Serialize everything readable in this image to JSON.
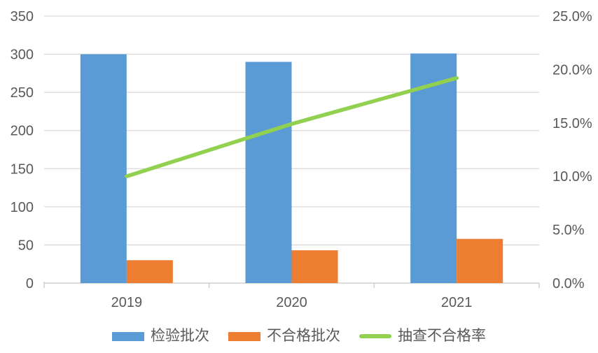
{
  "chart_data": {
    "type": "combo_bar_line",
    "title": "",
    "categories": [
      "2019",
      "2020",
      "2021"
    ],
    "series": [
      {
        "name": "检验批次",
        "type": "bar",
        "axis": "left",
        "color": "#5B9BD5",
        "values": [
          300,
          290,
          301
        ]
      },
      {
        "name": "不合格批次",
        "type": "bar",
        "axis": "left",
        "color": "#ED7D31",
        "values": [
          30,
          43,
          58
        ]
      },
      {
        "name": "抽查不合格率",
        "type": "line",
        "axis": "right",
        "color": "#92D050",
        "values_percent": [
          10.0,
          14.9,
          19.2
        ]
      }
    ],
    "left_axis": {
      "min": 0,
      "max": 350,
      "step": 50,
      "tick_labels": [
        "0",
        "50",
        "100",
        "150",
        "200",
        "250",
        "300",
        "350"
      ]
    },
    "right_axis": {
      "min": 0,
      "max": 25,
      "step": 5,
      "tick_labels": [
        "0.0%",
        "5.0%",
        "10.0%",
        "15.0%",
        "20.0%",
        "25.0%"
      ]
    },
    "legend": {
      "position": "bottom",
      "entries": [
        "检验批次",
        "不合格批次",
        "抽查不合格率"
      ]
    },
    "grid": true
  },
  "style": {
    "background": "#FFFFFF",
    "grid_color": "#D9D9D9",
    "axis_color": "#D0D0D0",
    "text_color": "#595959"
  }
}
